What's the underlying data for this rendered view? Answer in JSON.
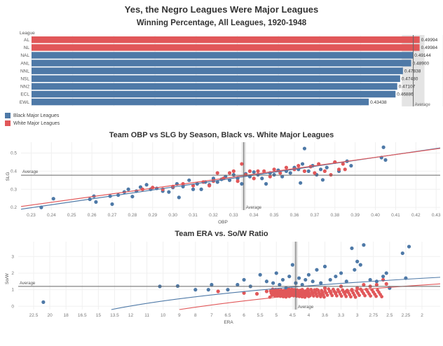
{
  "title": "Yes, the Negro Leagues Were Major Leagues",
  "colors": {
    "black_leagues": "#4E79A7",
    "white_leagues": "#E15759",
    "avg_line": "#666666",
    "avg_band": "#e4e4e4",
    "grid": "#f0f0f0"
  },
  "legend": [
    {
      "label": "Black Major Leagues",
      "color": "#4E79A7"
    },
    {
      "label": "White Major Leagues",
      "color": "#E15759"
    }
  ],
  "chart_data": [
    {
      "type": "bar",
      "title": "Winning Percentage, All Leagues, 1920-1948",
      "ylabel": "League",
      "xlim": [
        0,
        0.53
      ],
      "average_label": "Average",
      "average": 0.4917,
      "categories": [
        "AL",
        "NL",
        "NAL",
        "ANL",
        "NNL",
        "NSL",
        "NN2",
        "ECL",
        "EWL"
      ],
      "values": [
        0.49994,
        0.49984,
        0.49144,
        0.489,
        0.47838,
        0.4748,
        0.47107,
        0.46886,
        0.43438
      ],
      "labels": [
        "0.49994",
        "0.49984",
        "0.49144",
        "0.48900",
        "0.47838",
        "0.47480",
        "0.47107",
        "0.46886",
        "0.43438"
      ],
      "group": [
        "white",
        "white",
        "black",
        "black",
        "black",
        "black",
        "black",
        "black",
        "black"
      ]
    },
    {
      "type": "scatter",
      "title": "Team OBP vs SLG by Season, Black vs. White Major Leagues",
      "xlabel": "OBP",
      "ylabel": "SLG",
      "xlim": [
        0.225,
        0.432
      ],
      "ylim": [
        0.185,
        0.56
      ],
      "xticks": [
        "0.23",
        "0.24",
        "0.25",
        "0.26",
        "0.27",
        "0.28",
        "0.29",
        "0.30",
        "0.31",
        "0.32",
        "0.33",
        "0.34",
        "0.35",
        "0.36",
        "0.37",
        "0.38",
        "0.39",
        "0.40",
        "0.41",
        "0.42",
        "0.43"
      ],
      "yticks": [
        "0.2",
        "0.3",
        "0.4",
        "0.5"
      ],
      "average_x": 0.335,
      "average_y": 0.378,
      "average_label": "Average",
      "trend": {
        "black": [
          [
            0.225,
            0.19
          ],
          [
            0.432,
            0.528
          ]
        ],
        "white": [
          [
            0.225,
            0.205
          ],
          [
            0.432,
            0.526
          ]
        ]
      },
      "series": [
        {
          "name": "Black Major Leagues",
          "points": [
            [
              0.235,
              0.2
            ],
            [
              0.241,
              0.248
            ],
            [
              0.259,
              0.245
            ],
            [
              0.261,
              0.262
            ],
            [
              0.262,
              0.23
            ],
            [
              0.269,
              0.262
            ],
            [
              0.27,
              0.218
            ],
            [
              0.273,
              0.268
            ],
            [
              0.276,
              0.285
            ],
            [
              0.278,
              0.3
            ],
            [
              0.28,
              0.26
            ],
            [
              0.282,
              0.29
            ],
            [
              0.284,
              0.312
            ],
            [
              0.287,
              0.325
            ],
            [
              0.289,
              0.3
            ],
            [
              0.292,
              0.305
            ],
            [
              0.295,
              0.29
            ],
            [
              0.298,
              0.285
            ],
            [
              0.3,
              0.31
            ],
            [
              0.302,
              0.33
            ],
            [
              0.303,
              0.255
            ],
            [
              0.305,
              0.315
            ],
            [
              0.308,
              0.35
            ],
            [
              0.31,
              0.3
            ],
            [
              0.312,
              0.33
            ],
            [
              0.314,
              0.3
            ],
            [
              0.316,
              0.34
            ],
            [
              0.318,
              0.325
            ],
            [
              0.32,
              0.36
            ],
            [
              0.322,
              0.34
            ],
            [
              0.324,
              0.355
            ],
            [
              0.326,
              0.37
            ],
            [
              0.328,
              0.35
            ],
            [
              0.33,
              0.38
            ],
            [
              0.332,
              0.36
            ],
            [
              0.334,
              0.33
            ],
            [
              0.336,
              0.385
            ],
            [
              0.338,
              0.37
            ],
            [
              0.34,
              0.395
            ],
            [
              0.342,
              0.38
            ],
            [
              0.344,
              0.36
            ],
            [
              0.346,
              0.33
            ],
            [
              0.348,
              0.39
            ],
            [
              0.35,
              0.38
            ],
            [
              0.352,
              0.405
            ],
            [
              0.354,
              0.37
            ],
            [
              0.356,
              0.4
            ],
            [
              0.358,
              0.39
            ],
            [
              0.36,
              0.42
            ],
            [
              0.362,
              0.41
            ],
            [
              0.363,
              0.335
            ],
            [
              0.364,
              0.44
            ],
            [
              0.365,
              0.525
            ],
            [
              0.367,
              0.4
            ],
            [
              0.369,
              0.43
            ],
            [
              0.371,
              0.38
            ],
            [
              0.373,
              0.41
            ],
            [
              0.374,
              0.352
            ],
            [
              0.376,
              0.42
            ],
            [
              0.38,
              0.45
            ],
            [
              0.382,
              0.4
            ],
            [
              0.386,
              0.455
            ],
            [
              0.388,
              0.43
            ],
            [
              0.403,
              0.475
            ],
            [
              0.404,
              0.532
            ],
            [
              0.405,
              0.462
            ]
          ]
        },
        {
          "name": "White Major Leagues",
          "points": [
            [
              0.285,
              0.3
            ],
            [
              0.29,
              0.31
            ],
            [
              0.295,
              0.3
            ],
            [
              0.3,
              0.315
            ],
            [
              0.305,
              0.33
            ],
            [
              0.31,
              0.32
            ],
            [
              0.315,
              0.34
            ],
            [
              0.318,
              0.32
            ],
            [
              0.32,
              0.345
            ],
            [
              0.322,
              0.39
            ],
            [
              0.325,
              0.36
            ],
            [
              0.328,
              0.39
            ],
            [
              0.33,
              0.4
            ],
            [
              0.332,
              0.345
            ],
            [
              0.334,
              0.44
            ],
            [
              0.336,
              0.38
            ],
            [
              0.338,
              0.4
            ],
            [
              0.34,
              0.36
            ],
            [
              0.342,
              0.4
            ],
            [
              0.345,
              0.4
            ],
            [
              0.348,
              0.37
            ],
            [
              0.35,
              0.41
            ],
            [
              0.353,
              0.39
            ],
            [
              0.356,
              0.42
            ],
            [
              0.36,
              0.41
            ],
            [
              0.362,
              0.43
            ],
            [
              0.365,
              0.4
            ],
            [
              0.368,
              0.425
            ],
            [
              0.37,
              0.39
            ],
            [
              0.372,
              0.44
            ],
            [
              0.375,
              0.4
            ],
            [
              0.378,
              0.38
            ],
            [
              0.38,
              0.45
            ],
            [
              0.382,
              0.41
            ],
            [
              0.384,
              0.44
            ],
            [
              0.385,
              0.41
            ]
          ]
        }
      ]
    },
    {
      "type": "scatter",
      "title": "Team ERA vs. So/W Ratio",
      "xlabel": "ERA",
      "ylabel": "So/W",
      "x_reversed": true,
      "xticks": [
        "22.5",
        "20",
        "18",
        "16.5",
        "15",
        "13.5",
        "12",
        "11",
        "10",
        "9",
        "8",
        "7",
        "6.5",
        "6",
        "5.5",
        "5",
        "4.5",
        "4",
        "3.6",
        "3.3",
        "3",
        "2.75",
        "2.5",
        "2.25",
        "2"
      ],
      "yticks": [
        "0",
        "1",
        "2",
        "3"
      ],
      "ylim": [
        -0.2,
        3.9
      ],
      "average_x": 4.4,
      "average_y": 1.2,
      "average_label": "Average",
      "series": [
        {
          "name": "Black Major Leagues",
          "points": [
            [
              21,
              0.25
            ],
            [
              10.2,
              1.2
            ],
            [
              9.1,
              1.22
            ],
            [
              8,
              1
            ],
            [
              7.2,
              1
            ],
            [
              7,
              1.3
            ],
            [
              6.5,
              1
            ],
            [
              6.2,
              1.3
            ],
            [
              6,
              1.6
            ],
            [
              5.8,
              1.2
            ],
            [
              5.5,
              1.9
            ],
            [
              5.3,
              1.5
            ],
            [
              5.1,
              1.4
            ],
            [
              5,
              2
            ],
            [
              4.9,
              1.3
            ],
            [
              4.8,
              1.6
            ],
            [
              4.7,
              1.1
            ],
            [
              4.6,
              1.8
            ],
            [
              4.5,
              2.5
            ],
            [
              4.4,
              1.4
            ],
            [
              4.3,
              1.7
            ],
            [
              4.2,
              1.3
            ],
            [
              4.1,
              1.6
            ],
            [
              4,
              1.9
            ],
            [
              3.9,
              1.5
            ],
            [
              3.8,
              2.2
            ],
            [
              3.7,
              1.4
            ],
            [
              3.6,
              2.4
            ],
            [
              3.5,
              1.6
            ],
            [
              3.4,
              1.8
            ],
            [
              3.3,
              2
            ],
            [
              3.2,
              1.5
            ],
            [
              3.1,
              3.5
            ],
            [
              3.05,
              2.2
            ],
            [
              3,
              2.7
            ],
            [
              2.95,
              2.5
            ],
            [
              2.9,
              3.7
            ],
            [
              2.8,
              1.6
            ],
            [
              2.7,
              1.5
            ],
            [
              2.6,
              1.8
            ],
            [
              2.55,
              2
            ],
            [
              2.5,
              1.1
            ],
            [
              2.3,
              3.2
            ],
            [
              2.2,
              3.6
            ],
            [
              2.25,
              1.7
            ]
          ]
        },
        {
          "name": "White Major Leagues",
          "points": [
            [
              6.8,
              0.9
            ],
            [
              6,
              0.8
            ],
            [
              5.6,
              0.75
            ],
            [
              5.3,
              0.9
            ],
            [
              5,
              0.7
            ],
            [
              4.8,
              0.9
            ],
            [
              4.6,
              0.6
            ],
            [
              4.5,
              1
            ],
            [
              4.4,
              0.8
            ],
            [
              4.3,
              0.7
            ],
            [
              4.2,
              1
            ],
            [
              4.1,
              0.9
            ],
            [
              4,
              0.6
            ],
            [
              3.9,
              0.8
            ],
            [
              3.8,
              1
            ],
            [
              3.7,
              0.7
            ],
            [
              3.6,
              1.1
            ],
            [
              3.5,
              0.9
            ],
            [
              3.4,
              0.8
            ],
            [
              3.3,
              1.2
            ],
            [
              3.2,
              0.9
            ],
            [
              3.1,
              1
            ],
            [
              3,
              1.1
            ],
            [
              2.9,
              1.3
            ],
            [
              2.8,
              1.2
            ],
            [
              2.7,
              1.3
            ],
            [
              2.6,
              1.6
            ],
            [
              2.55,
              1.35
            ]
          ]
        }
      ]
    }
  ]
}
